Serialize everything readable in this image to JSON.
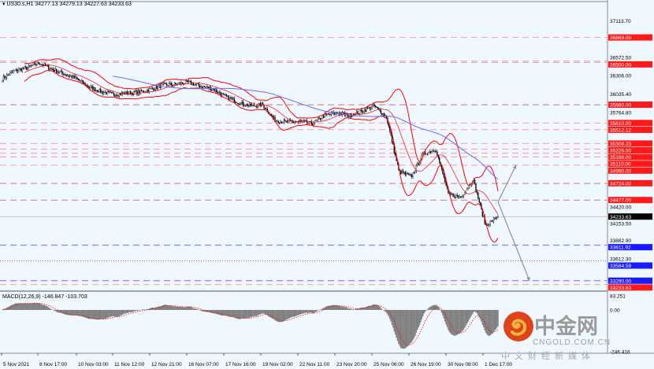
{
  "header": {
    "symbol": "US30.s,H1",
    "ohlc": "34277.13 34279.13 34227.63 34233.63"
  },
  "macd_label": "MACD(12,26,9) -146.847 -103.703",
  "logo": {
    "name": "中金网",
    "domain": "CNGOLD.COM.CN",
    "tagline": "中文财经新媒体"
  },
  "colors": {
    "background": "#f0f8ff",
    "candle": "#000000",
    "bollinger": "#ff0000",
    "ma": "#6a6aff",
    "red_level": "#ff0000",
    "blue_level": "#0000ff",
    "histogram": "#808080",
    "signal": "#ff0000",
    "current_price": "#000000"
  },
  "chart_data": {
    "type": "candlestick",
    "symbol": "US30.s",
    "timeframe": "H1",
    "ylim": [
      33160,
      37420
    ],
    "close_samples": [
      36264,
      36380,
      36420,
      36495,
      36400,
      36330,
      36260,
      36140,
      36070,
      36030,
      36050,
      36060,
      36110,
      36170,
      36180,
      36210,
      36150,
      36110,
      36000,
      35920,
      35860,
      35880,
      35650,
      35620,
      35630,
      35600,
      35720,
      35760,
      35720,
      35780,
      35860,
      35700,
      34900,
      34820,
      35160,
      35220,
      34560,
      34520,
      34780,
      34100,
      34233.63
    ],
    "x_tick_labels": [
      "5 Nov 2021",
      "8 Nov 17:00",
      "10 Nov 03:00",
      "11 Nov 12:00",
      "12 Nov 21:00",
      "16 Nov 07:00",
      "17 Nov 16:00",
      "19 Nov 02:00",
      "22 Nov 11:00",
      "23 Nov 20:00",
      "25 Nov 06:00",
      "26 Nov 19:00",
      "30 Nov 08:00",
      "1 Dec 17:00"
    ],
    "y_tick_labels": [
      "37113.70",
      "36572.50",
      "36306.00",
      "36035.40",
      "35764.80",
      "34420.00",
      "34153.50",
      "33882.90",
      "33612.30"
    ],
    "levels": [
      {
        "label": "36869.00",
        "value": 36869.0,
        "color": "red",
        "style": "dashed"
      },
      {
        "label": "36500.00",
        "value": 36500.0,
        "color": "red",
        "style": "dashed"
      },
      {
        "label": "35880.00",
        "value": 35880.0,
        "color": "red",
        "style": "dashed"
      },
      {
        "label": "35610.00",
        "value": 35610.0,
        "color": "red",
        "style": "dashed"
      },
      {
        "label": "35512.12",
        "value": 35512.12,
        "color": "red",
        "style": "dashed"
      },
      {
        "label": "35308.23",
        "value": 35308.23,
        "color": "red",
        "style": "dashed"
      },
      {
        "label": "35226.00",
        "value": 35226.0,
        "color": "red",
        "style": "dashed"
      },
      {
        "label": "35166.00",
        "value": 35166.0,
        "color": "red",
        "style": "dashed"
      },
      {
        "label": "35110.00",
        "value": 35110.0,
        "color": "red",
        "style": "dashed"
      },
      {
        "label": "34990.00",
        "value": 34990.0,
        "color": "red",
        "style": "dashed"
      },
      {
        "label": "34724.00",
        "value": 34724.0,
        "color": "red",
        "style": "dashed"
      },
      {
        "label": "34477.00",
        "value": 34477.0,
        "color": "red",
        "style": "dashed"
      },
      {
        "label": "33811.92",
        "value": 33811.92,
        "color": "blue",
        "style": "dashed"
      },
      {
        "label": "33584.59",
        "value": 33584.59,
        "color": "blue",
        "style": "dotted"
      },
      {
        "label": "33290.00",
        "value": 33290.0,
        "color": "blue",
        "style": "dashed"
      },
      {
        "label": "33233.63",
        "value": 33233.63,
        "color": "red",
        "style": "dashed"
      }
    ],
    "current_price": {
      "label": "34233.63",
      "value": 34233.63
    },
    "indicators": [
      "Bollinger Bands",
      "Moving Average",
      "MACD(12,26,9)"
    ],
    "macd": {
      "ylim": [
        -246.416,
        83.251
      ],
      "tick_labels": [
        "83.251",
        "0.00",
        "-246.416"
      ],
      "macd_value": -146.847,
      "signal_value": -103.703
    },
    "projections": [
      {
        "from": 34450,
        "to": 34990,
        "direction": "up"
      },
      {
        "from": 34450,
        "to": 33290,
        "direction": "down"
      }
    ]
  }
}
